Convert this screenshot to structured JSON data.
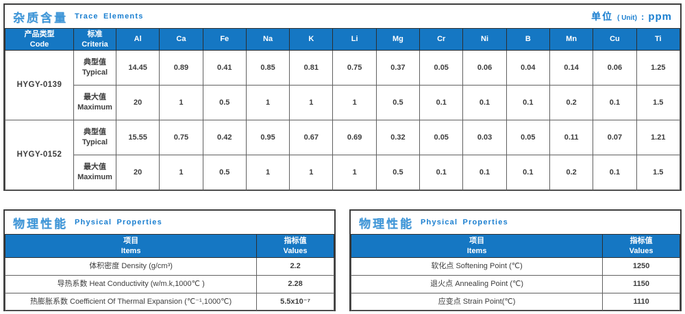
{
  "colors": {
    "header_blue": "#1577c3",
    "title_blue": "#3e96d8",
    "accent_blue": "#1b7fd0"
  },
  "trace": {
    "title_zh": "杂质含量",
    "title_en": "Trace Elements",
    "unit_zh": "单位",
    "unit_paren": "( Unit)",
    "unit_colon": ":",
    "unit_value": "ppm",
    "header": {
      "code_zh": "产品类型",
      "code_en": "Code",
      "criteria_zh": "标准",
      "criteria_en": "Criteria",
      "elements": [
        "Al",
        "Ca",
        "Fe",
        "Na",
        "K",
        "Li",
        "Mg",
        "Cr",
        "Ni",
        "B",
        "Mn",
        "Cu",
        "Ti"
      ]
    },
    "groups": [
      {
        "code": "HYGY-0139",
        "rows": [
          {
            "criteria_zh": "典型值",
            "criteria_en": "Typical",
            "values": [
              "14.45",
              "0.89",
              "0.41",
              "0.85",
              "0.81",
              "0.75",
              "0.37",
              "0.05",
              "0.06",
              "0.04",
              "0.14",
              "0.06",
              "1.25"
            ]
          },
          {
            "criteria_zh": "最大值",
            "criteria_en": "Maximum",
            "values": [
              "20",
              "1",
              "0.5",
              "1",
              "1",
              "1",
              "0.5",
              "0.1",
              "0.1",
              "0.1",
              "0.2",
              "0.1",
              "1.5"
            ]
          }
        ]
      },
      {
        "code": "HYGY-0152",
        "rows": [
          {
            "criteria_zh": "典型值",
            "criteria_en": "Typical",
            "values": [
              "15.55",
              "0.75",
              "0.42",
              "0.95",
              "0.67",
              "0.69",
              "0.32",
              "0.05",
              "0.03",
              "0.05",
              "0.11",
              "0.07",
              "1.21"
            ]
          },
          {
            "criteria_zh": "最大值",
            "criteria_en": "Maximum",
            "values": [
              "20",
              "1",
              "0.5",
              "1",
              "1",
              "1",
              "0.5",
              "0.1",
              "0.1",
              "0.1",
              "0.2",
              "0.1",
              "1.5"
            ]
          }
        ]
      }
    ]
  },
  "physical_left": {
    "title_zh": "物理性能",
    "title_en": "Physical Properties",
    "header": {
      "items_zh": "项目",
      "items_en": "Items",
      "values_zh": "指标值",
      "values_en": "Values"
    },
    "rows": [
      {
        "item": "体积密度 Density (g/cm³)",
        "value": "2.2"
      },
      {
        "item": "导热系数 Heat Conductivity (w/m.k,1000℃ )",
        "value": "2.28"
      },
      {
        "item": "热膨胀系数 Coefficient Of Thermal Expansion (℃⁻¹,1000℃)",
        "value": "5.5x10⁻⁷"
      }
    ]
  },
  "physical_right": {
    "title_zh": "物理性能",
    "title_en": "Physical Properties",
    "header": {
      "items_zh": "项目",
      "items_en": "Items",
      "values_zh": "指标值",
      "values_en": "Values"
    },
    "rows": [
      {
        "item": "软化点 Softening Point (℃)",
        "value": "1250"
      },
      {
        "item": "退火点 Annealing Point (℃)",
        "value": "1150"
      },
      {
        "item": "应变点 Strain Point(℃)",
        "value": "1110"
      }
    ]
  }
}
